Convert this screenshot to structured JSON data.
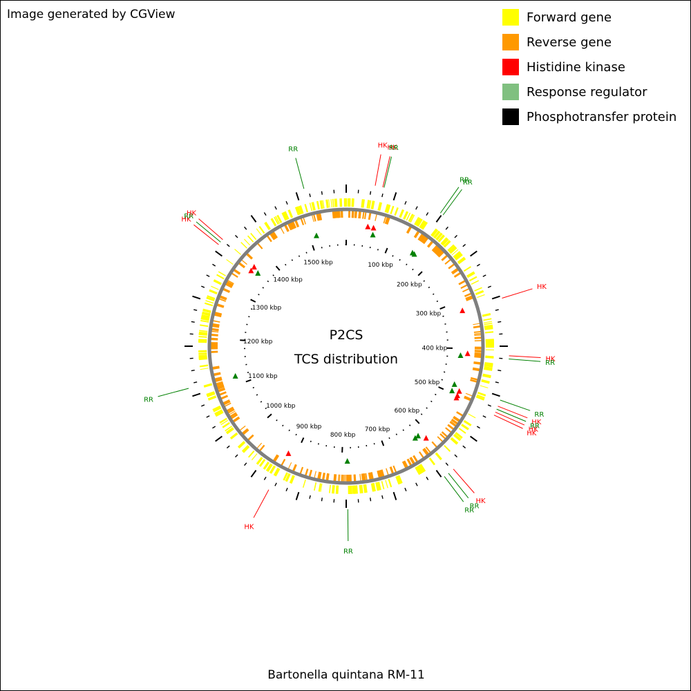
{
  "header": {
    "credit": "Image generated by CGView"
  },
  "legend": [
    {
      "label": "Forward gene",
      "color": "#ffff00"
    },
    {
      "label": "Reverse gene",
      "color": "#ff9900"
    },
    {
      "label": "Histidine kinase",
      "color": "#ff0000"
    },
    {
      "label": "Response regulator",
      "color": "#80c080"
    },
    {
      "label": "Phosphotransfer protein",
      "color": "#000000"
    }
  ],
  "map": {
    "center_title": "P2CS",
    "center_subtitle": "TCS distribution",
    "genome_length_kbp": 1581,
    "kbp_ticks": [
      {
        "value": 100,
        "label": "100 kbp"
      },
      {
        "value": 200,
        "label": "200 kbp"
      },
      {
        "value": 300,
        "label": "300 kbp"
      },
      {
        "value": 400,
        "label": "400 kbp"
      },
      {
        "value": 500,
        "label": "500 kbp"
      },
      {
        "value": 600,
        "label": "600 kbp"
      },
      {
        "value": 700,
        "label": "700 kbp"
      },
      {
        "value": 800,
        "label": "800 kbp"
      },
      {
        "value": 900,
        "label": "900 kbp"
      },
      {
        "value": 1000,
        "label": "1000 kbp"
      },
      {
        "value": 1100,
        "label": "1100 kbp"
      },
      {
        "value": 1200,
        "label": "1200 kbp"
      },
      {
        "value": 1300,
        "label": "1300 kbp"
      },
      {
        "value": 1400,
        "label": "1400 kbp"
      },
      {
        "value": 1500,
        "label": "1500 kbp"
      }
    ],
    "features": [
      {
        "type": "RR",
        "kbp": 1515
      },
      {
        "type": "HK",
        "kbp": 45
      },
      {
        "type": "HK",
        "kbp": 57
      },
      {
        "type": "RR",
        "kbp": 59
      },
      {
        "type": "RR",
        "kbp": 155
      },
      {
        "type": "RR",
        "kbp": 160
      },
      {
        "type": "HK",
        "kbp": 320
      },
      {
        "type": "HK",
        "kbp": 410
      },
      {
        "type": "RR",
        "kbp": 415
      },
      {
        "type": "RR",
        "kbp": 480
      },
      {
        "type": "HK",
        "kbp": 490
      },
      {
        "type": "RR",
        "kbp": 495
      },
      {
        "type": "HK",
        "kbp": 500
      },
      {
        "type": "HK",
        "kbp": 505
      },
      {
        "type": "HK",
        "kbp": 610
      },
      {
        "type": "RR",
        "kbp": 620
      },
      {
        "type": "RR",
        "kbp": 628
      },
      {
        "type": "RR",
        "kbp": 788
      },
      {
        "type": "HK",
        "kbp": 915
      },
      {
        "type": "RR",
        "kbp": 1120
      },
      {
        "type": "HK",
        "kbp": 1355
      },
      {
        "type": "RR",
        "kbp": 1360
      },
      {
        "type": "HK",
        "kbp": 1365
      }
    ]
  },
  "footer": {
    "organism": "Bartonella quintana RM-11"
  }
}
